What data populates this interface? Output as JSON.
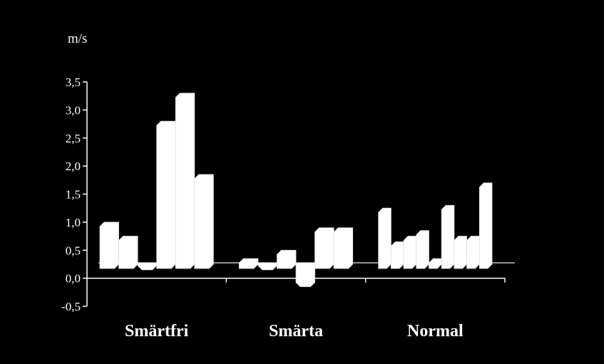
{
  "chart_data": {
    "type": "bar",
    "unit_label": "m/s",
    "ylim": [
      -0.5,
      3.5
    ],
    "yticks": [
      "-0,5",
      "0,0",
      "0,5",
      "1,0",
      "1,5",
      "2,0",
      "2,5",
      "3,0",
      "3,5"
    ],
    "reference_line": 0.25,
    "categories": [
      "Smärtfri",
      "Smärta",
      "Normal"
    ],
    "groups": [
      {
        "category": "Smärtfri",
        "values": [
          1.0,
          0.75,
          0.15,
          2.8,
          3.3,
          1.85
        ]
      },
      {
        "category": "Smärta",
        "values": [
          0.35,
          0.15,
          0.5,
          -0.15,
          0.9,
          0.9
        ]
      },
      {
        "category": "Normal",
        "values": [
          1.25,
          0.65,
          0.75,
          0.85,
          0.35,
          1.3,
          0.75,
          0.75,
          1.7
        ]
      }
    ],
    "bar_color": "#ffffff",
    "background": "#000000",
    "grid": false
  }
}
